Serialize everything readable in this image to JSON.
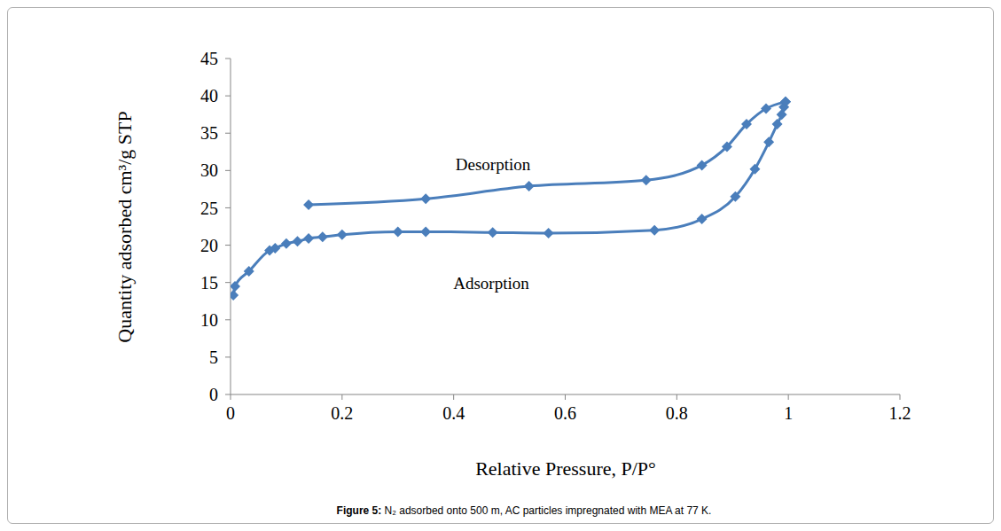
{
  "chart_data": {
    "type": "line",
    "caption": "Figure 5: N₂ adsorbed onto 500 m, AC particles impregnated with MEA at 77 K.",
    "x_label": "Relative Pressure, P/P°",
    "y_label": "Quantity adsorbed cm³/g STP",
    "xlim": [
      0,
      1.2
    ],
    "xticks": [
      0,
      0.2,
      0.4,
      0.6,
      0.8,
      1,
      1.2
    ],
    "ylim": [
      0,
      45
    ],
    "yticks": [
      0,
      5,
      10,
      15,
      20,
      25,
      30,
      35,
      40,
      45
    ],
    "grid": false,
    "marker": "diamond",
    "line_style": "smooth",
    "series": [
      {
        "name": "Adsorption",
        "color": "#4a7ebb",
        "x": [
          0.005,
          0.008,
          0.033,
          0.07,
          0.08,
          0.1,
          0.12,
          0.14,
          0.165,
          0.2,
          0.3,
          0.35,
          0.47,
          0.57,
          0.76,
          0.845,
          0.905,
          0.94,
          0.965,
          0.98,
          0.988,
          0.992,
          0.995
        ],
        "values": [
          13.3,
          14.5,
          16.5,
          19.3,
          19.6,
          20.2,
          20.5,
          20.9,
          21.1,
          21.4,
          21.8,
          21.8,
          21.7,
          21.6,
          22.0,
          23.5,
          26.5,
          30.2,
          33.8,
          36.2,
          37.5,
          38.5,
          39.2
        ]
      },
      {
        "name": "Desorption",
        "color": "#4a7ebb",
        "x": [
          0.995,
          0.96,
          0.925,
          0.89,
          0.845,
          0.745,
          0.535,
          0.35,
          0.14
        ],
        "values": [
          39.2,
          38.3,
          36.2,
          33.2,
          30.7,
          28.7,
          27.9,
          26.2,
          25.4
        ]
      }
    ]
  }
}
